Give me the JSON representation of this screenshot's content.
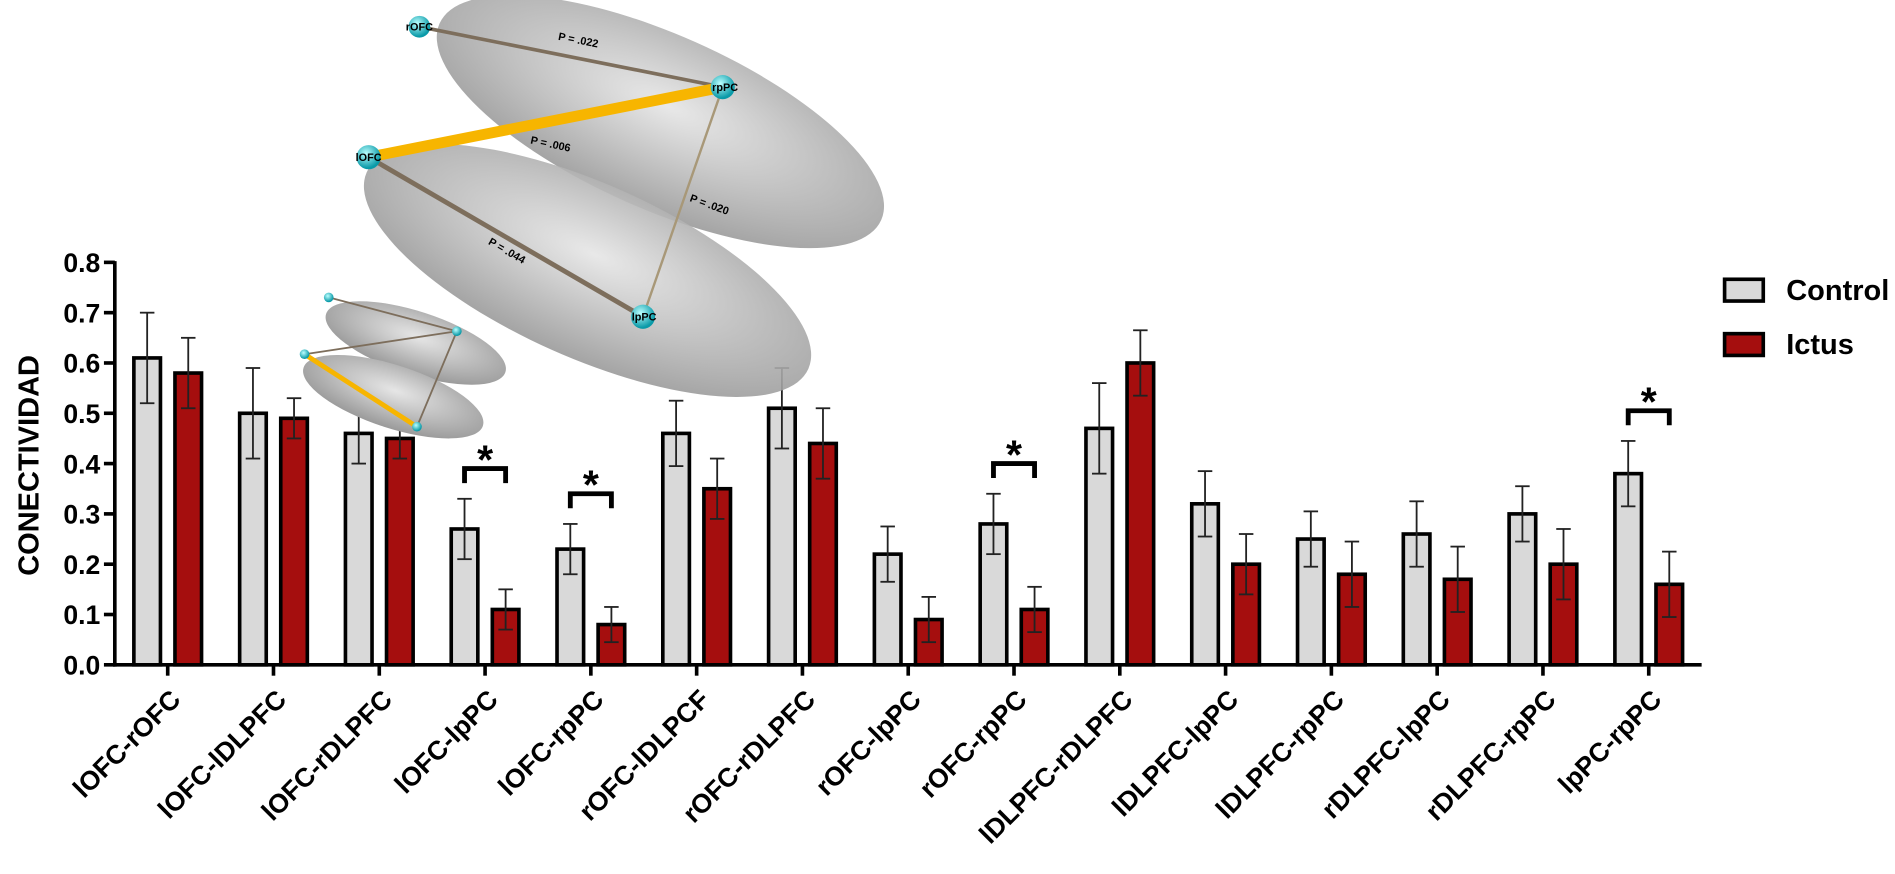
{
  "chart_data": {
    "type": "bar",
    "y_label": "CONECTIVIDAD",
    "categories": [
      "lOFC-rOFC",
      "lOFC-lDLPFC",
      "lOFC-rDLPFC",
      "lOFC-lpPC",
      "lOFC-rpPC",
      "rOFC-lDLPCF",
      "rOFC-rDLPFC",
      "rOFC-lpPC",
      "rOFC-rpPC",
      "lDLPFC-rDLPFC",
      "lDLPFC-lpPC",
      "lDLPFC-rpPC",
      "rDLPFC-lpPC",
      "rDLPFC-rpPC",
      "lpPC-rpPC"
    ],
    "series": [
      {
        "name": "Control",
        "color": "#d9d9d9",
        "values": [
          0.61,
          0.5,
          0.46,
          0.27,
          0.23,
          0.46,
          0.51,
          0.22,
          0.28,
          0.47,
          0.32,
          0.25,
          0.26,
          0.3,
          0.38
        ],
        "errors": [
          0.09,
          0.09,
          0.06,
          0.06,
          0.05,
          0.065,
          0.08,
          0.055,
          0.06,
          0.09,
          0.065,
          0.055,
          0.065,
          0.055,
          0.065
        ]
      },
      {
        "name": "Ictus",
        "color": "#a50e0e",
        "values": [
          0.58,
          0.49,
          0.45,
          0.11,
          0.08,
          0.35,
          0.44,
          0.09,
          0.11,
          0.6,
          0.2,
          0.18,
          0.17,
          0.2,
          0.16
        ],
        "errors": [
          0.07,
          0.04,
          0.04,
          0.04,
          0.035,
          0.06,
          0.07,
          0.045,
          0.045,
          0.065,
          0.06,
          0.065,
          0.065,
          0.07,
          0.065
        ]
      }
    ],
    "annotations": [
      {
        "text": "*",
        "category": "lOFC-lpPC"
      },
      {
        "text": "*",
        "category": "lOFC-rpPC"
      },
      {
        "text": "*",
        "category": "rOFC-rpPC"
      },
      {
        "text": "*",
        "category": "lpPC-rpPC"
      }
    ],
    "ylim": [
      0,
      0.8
    ],
    "yticks": [
      {
        "value": 0,
        "label": "0.0"
      },
      0.1,
      0.2,
      0.3,
      0.4,
      0.5,
      0.6,
      0.7,
      0.8
    ],
    "legend": "right"
  },
  "brain": {
    "nodes": [
      "rOFC",
      "rpPC",
      "lOFC",
      "lpPC"
    ],
    "edges": [
      "P = .022",
      "P = .006",
      "P = .020",
      "P = .044"
    ]
  }
}
